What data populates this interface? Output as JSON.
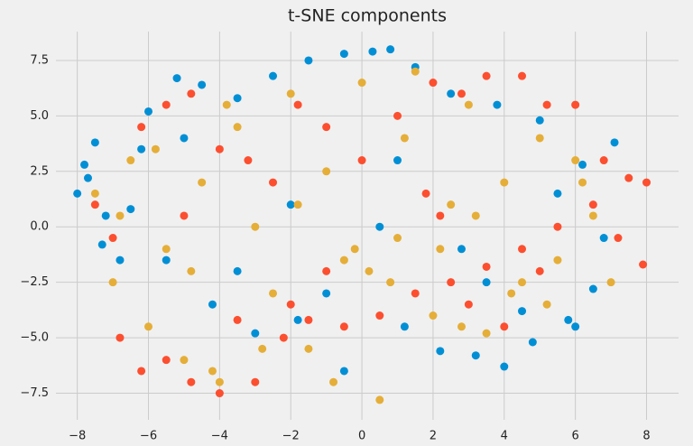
{
  "chart_data": {
    "type": "scatter",
    "title": "t-SNE components",
    "series": [
      {
        "color": "#008fd5",
        "x": [
          -8.0,
          -7.8,
          -7.5,
          -7.2,
          -6.8,
          -6.0,
          -5.2,
          -4.5,
          -3.5,
          -2.5,
          -1.5,
          -0.5,
          0.3,
          0.8,
          1.5,
          2.5,
          3.8,
          5.0,
          6.2,
          7.1,
          6.8,
          6.5,
          5.8,
          4.8,
          4.0,
          3.2,
          2.2,
          1.2,
          -0.5,
          -1.8,
          -3.0,
          -4.2,
          -5.5,
          -6.5,
          -7.3,
          -7.7,
          -2.0,
          -3.5,
          1.0,
          3.5,
          5.5,
          -5.0,
          -1.0,
          0.5,
          2.8,
          6.0,
          -6.2,
          4.5
        ],
        "values": [
          1.5,
          2.8,
          3.8,
          0.5,
          -1.5,
          5.2,
          6.7,
          6.4,
          5.8,
          6.8,
          7.5,
          7.8,
          7.9,
          8.0,
          7.2,
          6.0,
          5.5,
          4.8,
          2.8,
          3.8,
          -0.5,
          -2.8,
          -4.2,
          -5.2,
          -6.3,
          -5.8,
          -5.6,
          -4.5,
          -6.5,
          -4.2,
          -4.8,
          -3.5,
          -1.5,
          0.8,
          -0.8,
          2.2,
          1.0,
          -2.0,
          3.0,
          -2.5,
          1.5,
          4.0,
          -3.0,
          0.0,
          -1.0,
          -4.5,
          3.5,
          -3.8
        ]
      },
      {
        "color": "#fc4f30",
        "x": [
          -7.5,
          -7.0,
          -6.2,
          -5.5,
          -4.8,
          -4.0,
          -3.2,
          -2.5,
          -1.8,
          -1.0,
          0.0,
          1.0,
          2.0,
          2.8,
          3.5,
          4.5,
          5.2,
          6.0,
          6.8,
          7.5,
          8.0,
          7.9,
          7.2,
          6.5,
          5.5,
          4.5,
          3.5,
          2.5,
          1.5,
          0.5,
          -0.5,
          -1.5,
          -2.2,
          -3.0,
          -4.0,
          -4.8,
          -5.5,
          -6.2,
          -6.8,
          -3.5,
          -2.0,
          -1.0,
          2.2,
          3.0,
          4.0,
          1.8,
          -5.0,
          5.0
        ],
        "values": [
          1.0,
          -0.5,
          4.5,
          5.5,
          6.0,
          3.5,
          3.0,
          2.0,
          5.5,
          4.5,
          3.0,
          5.0,
          6.5,
          6.0,
          6.8,
          6.8,
          5.5,
          5.5,
          3.0,
          2.2,
          2.0,
          -1.7,
          -0.5,
          1.0,
          0.0,
          -1.0,
          -1.8,
          -2.5,
          -3.0,
          -4.0,
          -4.5,
          -4.2,
          -5.0,
          -7.0,
          -7.5,
          -7.0,
          -6.0,
          -6.5,
          -5.0,
          -4.2,
          -3.5,
          -2.0,
          0.5,
          -3.5,
          -4.5,
          1.5,
          0.5,
          -2.0
        ]
      },
      {
        "color": "#e5ae38",
        "x": [
          -7.5,
          -7.0,
          -6.5,
          -6.0,
          -5.5,
          -5.0,
          -4.5,
          -4.0,
          -3.5,
          -3.0,
          -2.5,
          -2.0,
          -1.5,
          -1.0,
          -0.5,
          0.0,
          0.5,
          1.0,
          1.5,
          2.0,
          2.5,
          3.0,
          3.5,
          4.0,
          4.5,
          5.0,
          5.5,
          6.0,
          6.5,
          7.0,
          -6.8,
          -5.8,
          -4.8,
          -3.8,
          -2.8,
          -1.8,
          -0.8,
          0.2,
          1.2,
          2.2,
          3.2,
          4.2,
          5.2,
          6.2,
          -4.2,
          -0.2,
          0.8,
          2.8
        ],
        "values": [
          1.5,
          -2.5,
          3.0,
          -4.5,
          -1.0,
          -6.0,
          2.0,
          -7.0,
          4.5,
          0.0,
          -3.0,
          6.0,
          -5.5,
          2.5,
          -1.5,
          6.5,
          -7.8,
          -0.5,
          7.0,
          -4.0,
          1.0,
          5.5,
          -4.8,
          2.0,
          -2.5,
          4.0,
          -1.5,
          3.0,
          0.5,
          -2.5,
          0.5,
          3.5,
          -2.0,
          5.5,
          -5.5,
          1.0,
          -7.0,
          -2.0,
          4.0,
          -1.0,
          0.5,
          -3.0,
          -3.5,
          2.0,
          -6.5,
          -1.0,
          -2.5,
          -4.5
        ]
      }
    ],
    "xlim": [
      -8.6,
      8.9
    ],
    "ylim": [
      -8.7,
      8.8
    ],
    "xticks": [
      {
        "value": -8,
        "label": "−8"
      },
      {
        "value": -6,
        "label": "−6"
      },
      {
        "value": -4,
        "label": "−4"
      },
      {
        "value": -2,
        "label": "−2"
      },
      0,
      2,
      4,
      6,
      8
    ],
    "yticks": [
      {
        "value": -7.5,
        "label": "−7.5"
      },
      {
        "value": -5,
        "label": "−5.0"
      },
      {
        "value": -2.5,
        "label": "−2.5"
      },
      {
        "value": 0,
        "label": "0.0"
      },
      2.5,
      {
        "value": 5,
        "label": "5.0"
      },
      7.5
    ],
    "grid": true
  }
}
